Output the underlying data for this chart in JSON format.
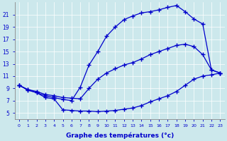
{
  "xlabel": "Graphe des températures (°c)",
  "bg_color": "#cce8ec",
  "line_color": "#0000cc",
  "xlim": [
    -0.5,
    23.5
  ],
  "ylim": [
    4.0,
    23.0
  ],
  "xticks": [
    0,
    1,
    2,
    3,
    4,
    5,
    6,
    7,
    8,
    9,
    10,
    11,
    12,
    13,
    14,
    15,
    16,
    17,
    18,
    19,
    20,
    21,
    22,
    23
  ],
  "yticks": [
    5,
    7,
    9,
    11,
    13,
    15,
    17,
    19,
    21
  ],
  "line1_x": [
    0,
    1,
    2,
    3,
    4,
    5,
    6,
    7,
    8,
    9,
    10,
    11,
    12,
    13,
    14,
    15,
    16,
    17,
    18,
    19,
    20,
    21,
    22,
    23
  ],
  "line1_y": [
    9.5,
    8.7,
    8.3,
    7.5,
    7.3,
    5.5,
    5.4,
    5.3,
    5.3,
    5.2,
    5.3,
    5.4,
    5.6,
    5.8,
    6.2,
    6.8,
    7.3,
    7.8,
    8.5,
    9.5,
    10.5,
    11.0,
    11.2,
    11.5
  ],
  "line2_x": [
    0,
    1,
    2,
    3,
    4,
    5,
    6,
    7,
    8,
    9,
    10,
    11,
    12,
    13,
    14,
    15,
    16,
    17,
    18,
    19,
    20,
    21,
    22,
    23
  ],
  "line2_y": [
    9.5,
    8.8,
    8.5,
    8.0,
    7.8,
    7.5,
    7.4,
    7.3,
    9.0,
    10.5,
    11.5,
    12.2,
    12.8,
    13.2,
    13.8,
    14.5,
    15.0,
    15.5,
    16.0,
    16.2,
    15.8,
    14.5,
    12.0,
    11.5
  ],
  "line3_x": [
    0,
    1,
    2,
    3,
    4,
    5,
    6,
    7,
    8,
    9,
    10,
    11,
    12,
    13,
    14,
    15,
    16,
    17,
    18,
    19,
    20,
    21,
    22,
    23
  ],
  "line3_y": [
    9.5,
    8.8,
    8.3,
    7.8,
    7.5,
    7.2,
    7.0,
    9.2,
    12.8,
    15.0,
    17.5,
    19.0,
    20.2,
    20.8,
    21.3,
    21.5,
    21.8,
    22.2,
    22.5,
    21.5,
    20.3,
    19.5,
    12.0,
    11.5
  ]
}
